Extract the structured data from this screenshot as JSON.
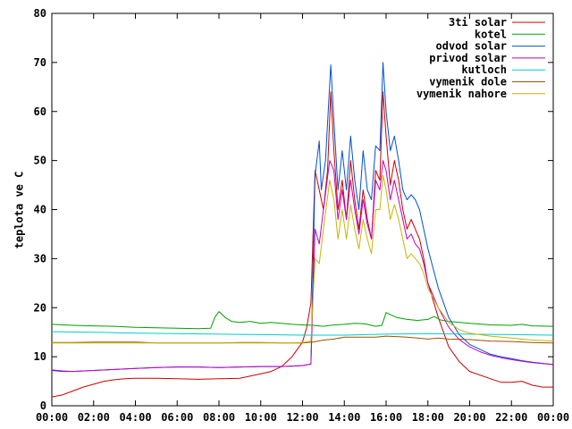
{
  "chart_data": {
    "type": "line",
    "title": "",
    "xlabel": "",
    "ylabel": "teplota ve C",
    "xlim": [
      0,
      24
    ],
    "ylim": [
      0,
      80
    ],
    "x_ticks": [
      0,
      2,
      4,
      6,
      8,
      10,
      12,
      14,
      16,
      18,
      20,
      22,
      24
    ],
    "x_tick_labels": [
      "00:00",
      "02:00",
      "04:00",
      "06:00",
      "08:00",
      "10:00",
      "12:00",
      "14:00",
      "16:00",
      "18:00",
      "20:00",
      "22:00",
      "00:00"
    ],
    "y_ticks": [
      0,
      10,
      20,
      30,
      40,
      50,
      60,
      70,
      80
    ],
    "y_tick_labels": [
      "0",
      "10",
      "20",
      "30",
      "40",
      "50",
      "60",
      "70",
      "80"
    ],
    "grid": false,
    "legend_position": "top-right",
    "series": [
      {
        "name": "3ti solar",
        "color": "#cc0000",
        "points": [
          [
            0,
            1.8
          ],
          [
            0.5,
            2.2
          ],
          [
            1,
            3
          ],
          [
            1.5,
            3.8
          ],
          [
            2,
            4.4
          ],
          [
            2.5,
            5
          ],
          [
            3,
            5.3
          ],
          [
            3.5,
            5.5
          ],
          [
            4,
            5.6
          ],
          [
            5,
            5.6
          ],
          [
            6,
            5.5
          ],
          [
            7,
            5.4
          ],
          [
            8,
            5.5
          ],
          [
            9,
            5.6
          ],
          [
            10,
            6.5
          ],
          [
            10.5,
            7
          ],
          [
            11,
            8
          ],
          [
            11.5,
            10
          ],
          [
            12,
            13
          ],
          [
            12.2,
            16
          ],
          [
            12.4,
            21
          ],
          [
            12.6,
            48
          ],
          [
            12.8,
            44
          ],
          [
            13,
            40
          ],
          [
            13.2,
            48
          ],
          [
            13.35,
            64
          ],
          [
            13.5,
            52
          ],
          [
            13.7,
            40
          ],
          [
            13.9,
            46
          ],
          [
            14.1,
            38
          ],
          [
            14.3,
            50
          ],
          [
            14.5,
            42
          ],
          [
            14.7,
            36
          ],
          [
            14.9,
            44
          ],
          [
            15.1,
            38
          ],
          [
            15.3,
            34
          ],
          [
            15.5,
            48
          ],
          [
            15.7,
            46
          ],
          [
            15.85,
            64
          ],
          [
            16,
            55
          ],
          [
            16.2,
            45
          ],
          [
            16.4,
            50
          ],
          [
            16.6,
            46
          ],
          [
            16.8,
            40
          ],
          [
            17,
            36
          ],
          [
            17.2,
            38
          ],
          [
            17.4,
            36
          ],
          [
            17.6,
            34
          ],
          [
            17.8,
            30
          ],
          [
            18,
            25
          ],
          [
            18.5,
            18
          ],
          [
            19,
            12
          ],
          [
            19.5,
            9
          ],
          [
            20,
            7
          ],
          [
            21,
            5.5
          ],
          [
            21.5,
            4.8
          ],
          [
            22,
            4.8
          ],
          [
            22.5,
            5
          ],
          [
            23,
            4.2
          ],
          [
            23.5,
            3.8
          ],
          [
            24,
            3.8
          ]
        ]
      },
      {
        "name": "kotel",
        "color": "#00a000",
        "points": [
          [
            0,
            16.6
          ],
          [
            1,
            16.4
          ],
          [
            2,
            16.3
          ],
          [
            3,
            16.2
          ],
          [
            4,
            16
          ],
          [
            5,
            15.9
          ],
          [
            6,
            15.8
          ],
          [
            7,
            15.7
          ],
          [
            7.6,
            15.8
          ],
          [
            7.8,
            18
          ],
          [
            8,
            19.2
          ],
          [
            8.3,
            18
          ],
          [
            8.6,
            17.2
          ],
          [
            9,
            17
          ],
          [
            9.5,
            17.2
          ],
          [
            10,
            16.8
          ],
          [
            10.5,
            17
          ],
          [
            11,
            16.8
          ],
          [
            11.5,
            16.6
          ],
          [
            12,
            16.5
          ],
          [
            12.5,
            16.4
          ],
          [
            13,
            16.2
          ],
          [
            13.5,
            16.5
          ],
          [
            14,
            16.6
          ],
          [
            14.5,
            16.8
          ],
          [
            15,
            16.7
          ],
          [
            15.5,
            16.2
          ],
          [
            15.8,
            16.4
          ],
          [
            16,
            19
          ],
          [
            16.2,
            18.6
          ],
          [
            16.5,
            18
          ],
          [
            17,
            17.6
          ],
          [
            17.5,
            17.4
          ],
          [
            18,
            17.6
          ],
          [
            18.3,
            18.2
          ],
          [
            18.6,
            17.5
          ],
          [
            19,
            17.2
          ],
          [
            20,
            16.8
          ],
          [
            21,
            16.5
          ],
          [
            22,
            16.4
          ],
          [
            22.5,
            16.6
          ],
          [
            23,
            16.3
          ],
          [
            24,
            16.2
          ]
        ]
      },
      {
        "name": "odvod solar",
        "color": "#0050d8",
        "points": [
          [
            0,
            7.2
          ],
          [
            0.5,
            7
          ],
          [
            1,
            7
          ],
          [
            2,
            7.2
          ],
          [
            3,
            7.4
          ],
          [
            4,
            7.6
          ],
          [
            5,
            7.8
          ],
          [
            6,
            7.9
          ],
          [
            7,
            7.9
          ],
          [
            8,
            7.8
          ],
          [
            9,
            7.9
          ],
          [
            10,
            8
          ],
          [
            11,
            8
          ],
          [
            11.5,
            8.1
          ],
          [
            12,
            8.2
          ],
          [
            12.4,
            8.5
          ],
          [
            12.6,
            47
          ],
          [
            12.8,
            54
          ],
          [
            12.9,
            44
          ],
          [
            13.1,
            50
          ],
          [
            13.35,
            69.5
          ],
          [
            13.5,
            58
          ],
          [
            13.7,
            44
          ],
          [
            13.9,
            52
          ],
          [
            14.1,
            44
          ],
          [
            14.3,
            55
          ],
          [
            14.5,
            46
          ],
          [
            14.7,
            40
          ],
          [
            14.9,
            52
          ],
          [
            15.1,
            44
          ],
          [
            15.3,
            42
          ],
          [
            15.5,
            53
          ],
          [
            15.7,
            52
          ],
          [
            15.85,
            70
          ],
          [
            16,
            60
          ],
          [
            16.2,
            52
          ],
          [
            16.4,
            55
          ],
          [
            16.6,
            50
          ],
          [
            16.8,
            44
          ],
          [
            17,
            42
          ],
          [
            17.2,
            43
          ],
          [
            17.4,
            42
          ],
          [
            17.6,
            40
          ],
          [
            17.8,
            36
          ],
          [
            18,
            32
          ],
          [
            18.5,
            24
          ],
          [
            19,
            18
          ],
          [
            19.5,
            14.5
          ],
          [
            20,
            12.5
          ],
          [
            20.5,
            11.5
          ],
          [
            21,
            10.5
          ],
          [
            21.5,
            10
          ],
          [
            22,
            9.6
          ],
          [
            22.5,
            9.2
          ],
          [
            23,
            8.9
          ],
          [
            24,
            8.4
          ]
        ]
      },
      {
        "name": "privod solar",
        "color": "#c000c0",
        "points": [
          [
            0,
            7.3
          ],
          [
            0.5,
            7.1
          ],
          [
            1,
            7
          ],
          [
            2,
            7.2
          ],
          [
            3,
            7.4
          ],
          [
            4,
            7.6
          ],
          [
            5,
            7.8
          ],
          [
            6,
            7.9
          ],
          [
            7,
            7.9
          ],
          [
            8,
            7.8
          ],
          [
            9,
            7.9
          ],
          [
            10,
            8
          ],
          [
            11,
            8
          ],
          [
            11.5,
            8.1
          ],
          [
            12,
            8.2
          ],
          [
            12.4,
            8.5
          ],
          [
            12.6,
            36
          ],
          [
            12.8,
            33
          ],
          [
            13,
            40
          ],
          [
            13.3,
            50
          ],
          [
            13.5,
            48
          ],
          [
            13.7,
            38
          ],
          [
            13.9,
            44
          ],
          [
            14.1,
            38
          ],
          [
            14.3,
            46
          ],
          [
            14.5,
            40
          ],
          [
            14.7,
            35
          ],
          [
            14.9,
            42
          ],
          [
            15.1,
            37
          ],
          [
            15.3,
            34
          ],
          [
            15.5,
            46
          ],
          [
            15.7,
            44
          ],
          [
            15.85,
            50
          ],
          [
            16,
            48
          ],
          [
            16.2,
            42
          ],
          [
            16.4,
            46
          ],
          [
            16.6,
            42
          ],
          [
            16.8,
            38
          ],
          [
            17,
            34
          ],
          [
            17.2,
            35
          ],
          [
            17.4,
            33
          ],
          [
            17.6,
            32
          ],
          [
            17.8,
            29
          ],
          [
            18,
            25
          ],
          [
            18.5,
            20
          ],
          [
            19,
            16
          ],
          [
            19.5,
            13.5
          ],
          [
            20,
            12
          ],
          [
            20.5,
            11
          ],
          [
            21,
            10.3
          ],
          [
            21.5,
            9.8
          ],
          [
            22,
            9.4
          ],
          [
            22.5,
            9.1
          ],
          [
            23,
            8.8
          ],
          [
            24,
            8.4
          ]
        ]
      },
      {
        "name": "kutloch",
        "color": "#00cccc",
        "points": [
          [
            0,
            15.1
          ],
          [
            2,
            15
          ],
          [
            4,
            14.8
          ],
          [
            6,
            14.7
          ],
          [
            8,
            14.6
          ],
          [
            10,
            14.5
          ],
          [
            12,
            14.4
          ],
          [
            14,
            14.4
          ],
          [
            16,
            14.6
          ],
          [
            18,
            14.7
          ],
          [
            20,
            14.6
          ],
          [
            22,
            14.5
          ],
          [
            24,
            14.4
          ]
        ]
      },
      {
        "name": "vymenik dole",
        "color": "#a05000",
        "points": [
          [
            0,
            12.9
          ],
          [
            1,
            12.9
          ],
          [
            2,
            13
          ],
          [
            3,
            13
          ],
          [
            4,
            13
          ],
          [
            5,
            12.8
          ],
          [
            6,
            12.8
          ],
          [
            7,
            12.8
          ],
          [
            8,
            12.8
          ],
          [
            9,
            12.9
          ],
          [
            10,
            12.9
          ],
          [
            11,
            12.8
          ],
          [
            12,
            12.8
          ],
          [
            12.5,
            13
          ],
          [
            13,
            13.4
          ],
          [
            13.5,
            13.6
          ],
          [
            14,
            14
          ],
          [
            15,
            14
          ],
          [
            15.5,
            14
          ],
          [
            16,
            14.2
          ],
          [
            16.5,
            14.1
          ],
          [
            17,
            14
          ],
          [
            17.5,
            13.8
          ],
          [
            18,
            13.6
          ],
          [
            18.5,
            13.8
          ],
          [
            19,
            13.6
          ],
          [
            20,
            13.5
          ],
          [
            21,
            13.2
          ],
          [
            22,
            13.1
          ],
          [
            23,
            12.9
          ],
          [
            24,
            12.8
          ]
        ]
      },
      {
        "name": "vymenik nahore",
        "color": "#c8b400",
        "points": [
          [
            0,
            12.8
          ],
          [
            2,
            12.8
          ],
          [
            4,
            12.8
          ],
          [
            6,
            12.8
          ],
          [
            8,
            12.8
          ],
          [
            10,
            12.8
          ],
          [
            11,
            12.8
          ],
          [
            12,
            12.9
          ],
          [
            12.4,
            13.2
          ],
          [
            12.6,
            30
          ],
          [
            12.8,
            29
          ],
          [
            13,
            36
          ],
          [
            13.3,
            46
          ],
          [
            13.5,
            42
          ],
          [
            13.7,
            34
          ],
          [
            13.9,
            40
          ],
          [
            14.1,
            34
          ],
          [
            14.3,
            41
          ],
          [
            14.5,
            36
          ],
          [
            14.7,
            32
          ],
          [
            14.9,
            38
          ],
          [
            15.1,
            34
          ],
          [
            15.3,
            31
          ],
          [
            15.5,
            40
          ],
          [
            15.7,
            40
          ],
          [
            15.85,
            47
          ],
          [
            16,
            44
          ],
          [
            16.2,
            38
          ],
          [
            16.4,
            41
          ],
          [
            16.6,
            38
          ],
          [
            16.8,
            34
          ],
          [
            17,
            30
          ],
          [
            17.2,
            31
          ],
          [
            17.4,
            30
          ],
          [
            17.6,
            29
          ],
          [
            17.8,
            27
          ],
          [
            18,
            24
          ],
          [
            18.5,
            20
          ],
          [
            19,
            17
          ],
          [
            19.5,
            15.5
          ],
          [
            20,
            14.8
          ],
          [
            21,
            14.2
          ],
          [
            22,
            13.8
          ],
          [
            23,
            13.4
          ],
          [
            24,
            13.2
          ]
        ]
      }
    ]
  }
}
